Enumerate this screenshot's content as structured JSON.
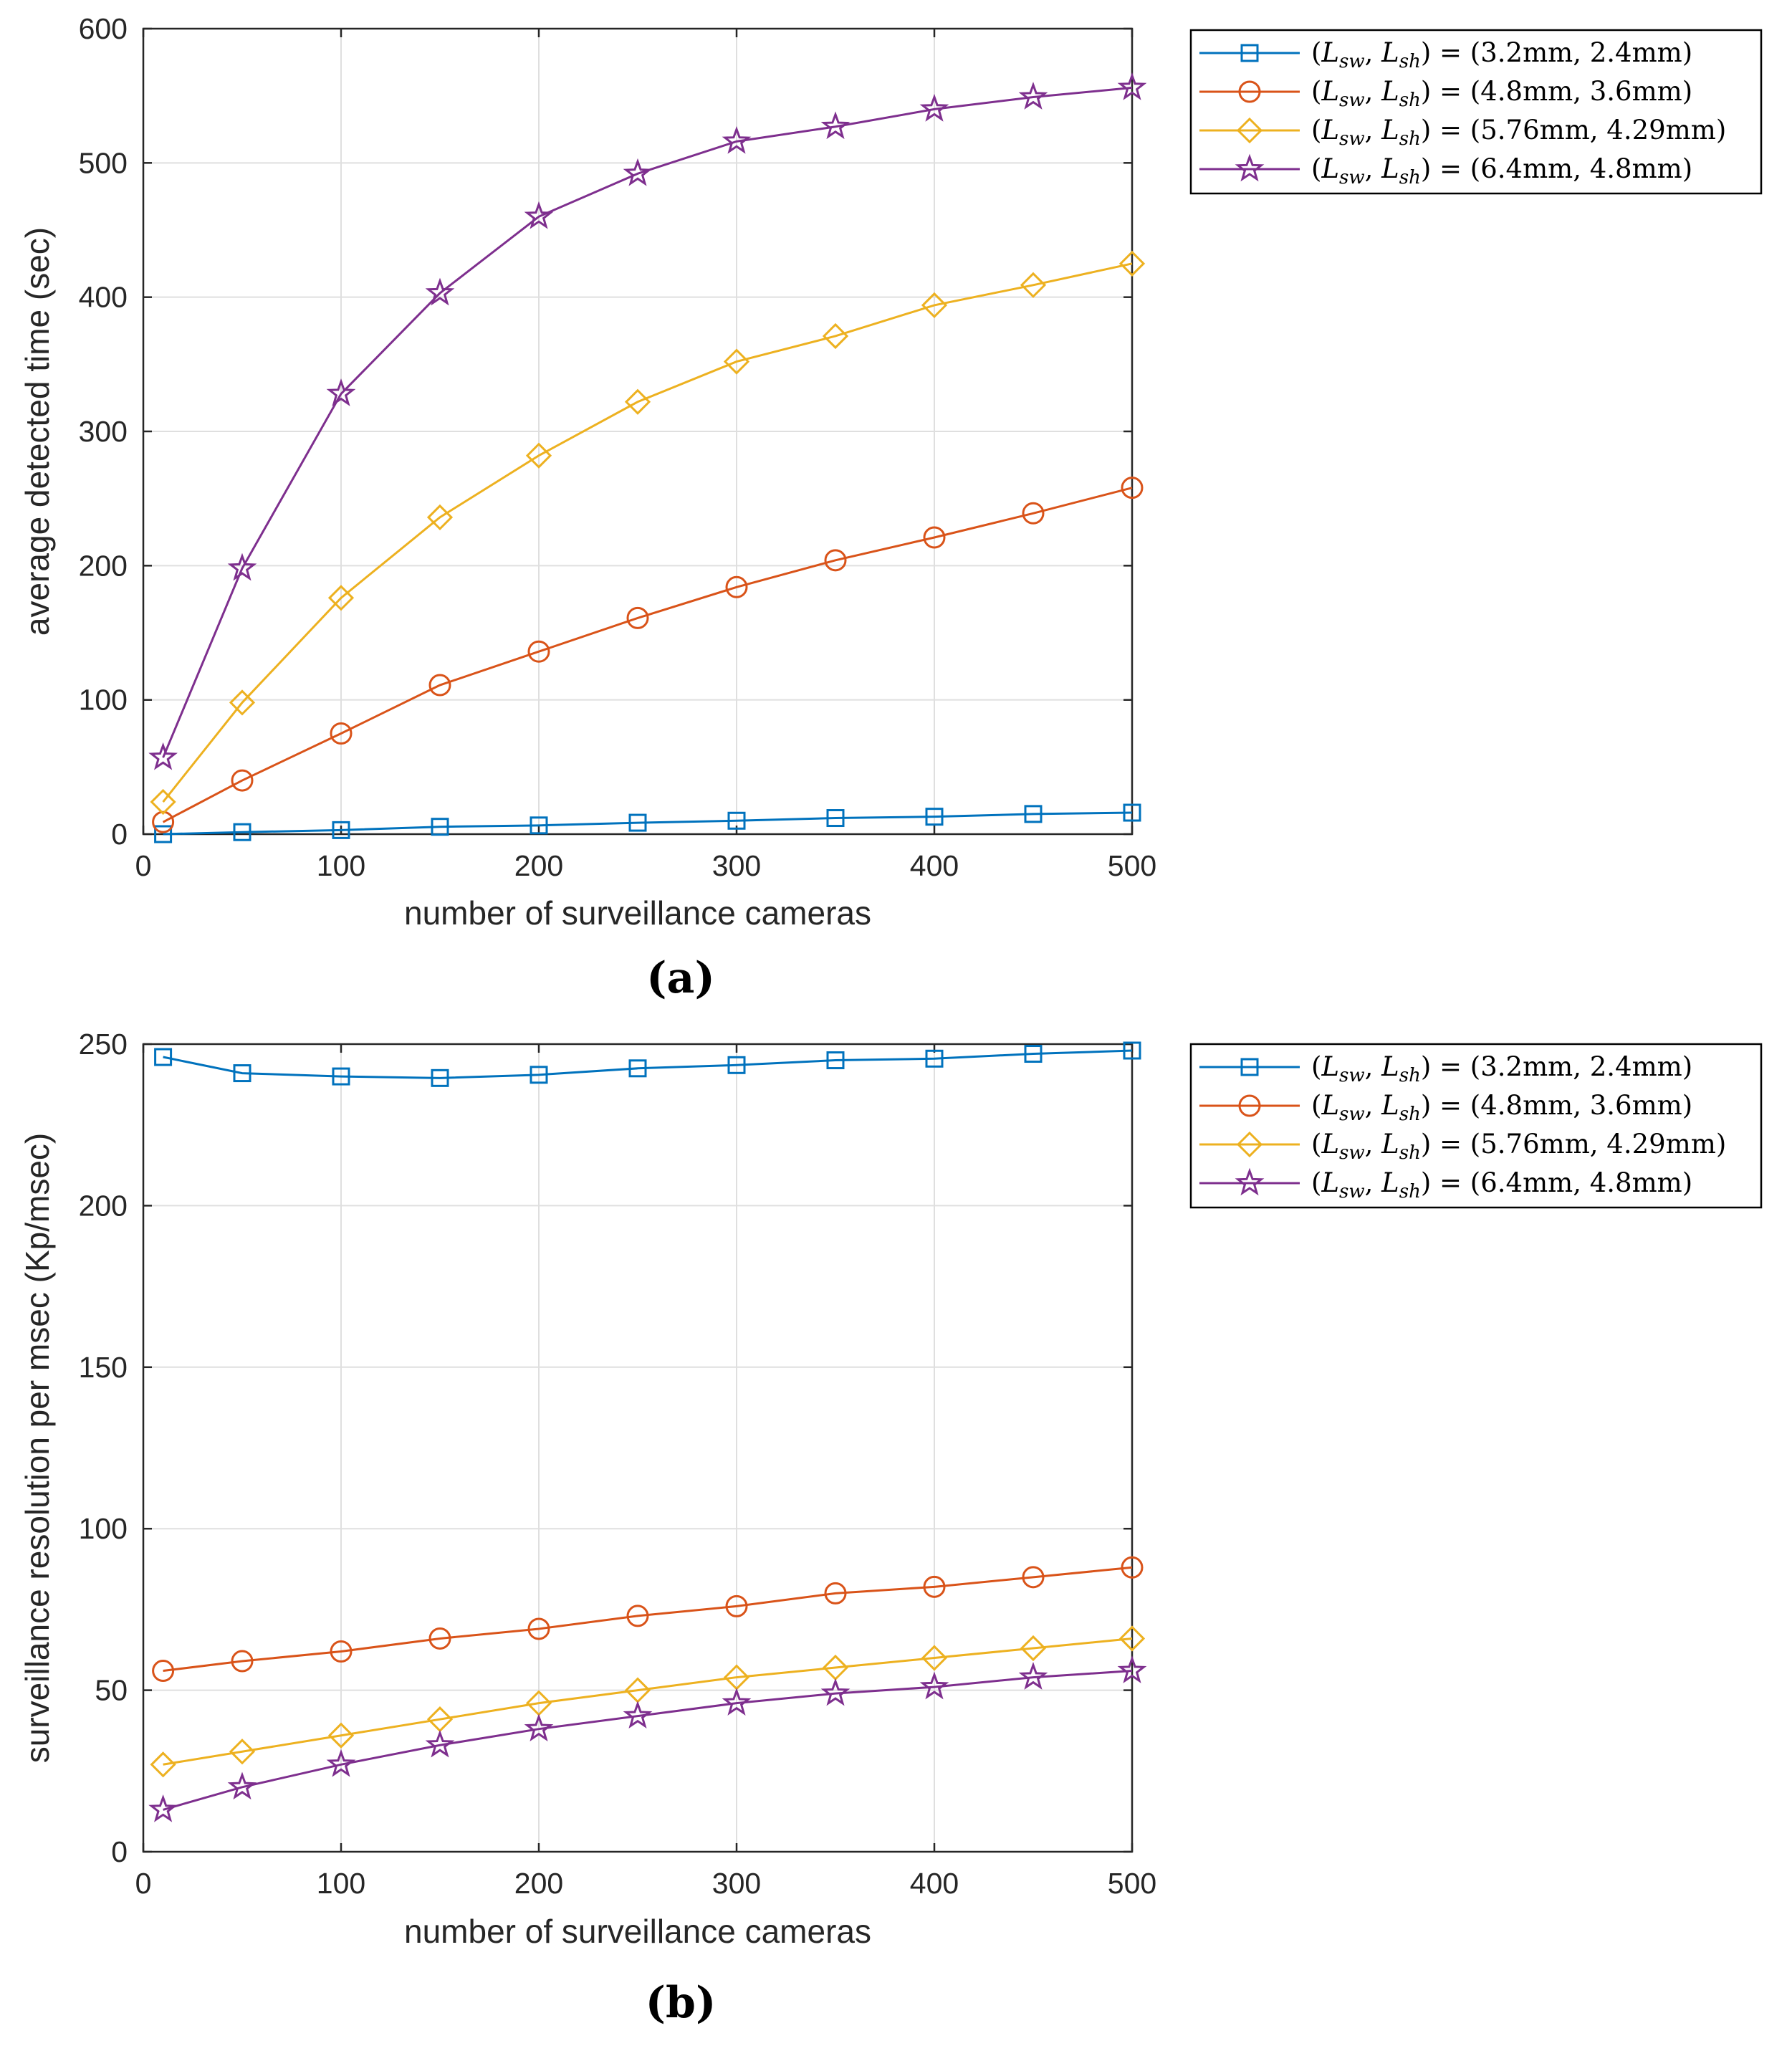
{
  "figure": {
    "colors": {
      "axis": "#262626",
      "grid": "#dfdfdf",
      "background": "#ffffff"
    }
  },
  "chart_data": [
    {
      "type": "line",
      "panel_label": "(a)",
      "title": "",
      "xlabel": "number of surveillance cameras",
      "ylabel": "average detected time (sec)",
      "xlim": [
        0,
        500
      ],
      "ylim": [
        0,
        600
      ],
      "xticks": [
        0,
        100,
        200,
        300,
        400,
        500
      ],
      "yticks": [
        0,
        100,
        200,
        300,
        400,
        500,
        600
      ],
      "grid": true,
      "legend_position": "outside-top-right",
      "x": [
        10,
        50,
        100,
        150,
        200,
        250,
        300,
        350,
        400,
        450,
        500
      ],
      "series": [
        {
          "name": "(L_sw, L_sh) = (3.2mm, 2.4mm)",
          "sym1": "L",
          "sub1": "sw",
          "sym2": "L",
          "sub2": "sh",
          "value_text": "(3.2mm, 2.4mm)",
          "color": "#0072bd",
          "marker": "square",
          "values": [
            0,
            1.5,
            3,
            5.5,
            6.5,
            8.5,
            10,
            12,
            13,
            15,
            16
          ]
        },
        {
          "name": "(L_sw, L_sh) = (4.8mm, 3.6mm)",
          "sym1": "L",
          "sub1": "sw",
          "sym2": "L",
          "sub2": "sh",
          "value_text": "(4.8mm, 3.6mm)",
          "color": "#d95319",
          "marker": "circle",
          "values": [
            9,
            40,
            75,
            111,
            136,
            161,
            184,
            204,
            221,
            239,
            258
          ]
        },
        {
          "name": "(L_sw, L_sh) = (5.76mm, 4.29mm)",
          "sym1": "L",
          "sub1": "sw",
          "sym2": "L",
          "sub2": "sh",
          "value_text": "(5.76mm, 4.29mm)",
          "color": "#edb120",
          "marker": "diamond",
          "values": [
            24,
            98,
            176,
            236,
            282,
            322,
            352,
            371,
            394,
            409,
            425
          ]
        },
        {
          "name": "(L_sw, L_sh) = (6.4mm, 4.8mm)",
          "sym1": "L",
          "sub1": "sw",
          "sym2": "L",
          "sub2": "sh",
          "value_text": "(6.4mm, 4.8mm)",
          "color": "#7e2f8e",
          "marker": "star",
          "values": [
            57,
            198,
            328,
            403,
            460,
            492,
            516,
            527,
            540,
            549,
            556
          ]
        }
      ]
    },
    {
      "type": "line",
      "panel_label": "(b)",
      "title": "",
      "xlabel": "number of surveillance cameras",
      "ylabel": "surveillance resolution per msec (Kp/msec)",
      "xlim": [
        0,
        500
      ],
      "ylim": [
        0,
        250
      ],
      "xticks": [
        0,
        100,
        200,
        300,
        400,
        500
      ],
      "yticks": [
        0,
        50,
        100,
        150,
        200,
        250
      ],
      "grid": true,
      "legend_position": "outside-top-right",
      "x": [
        10,
        50,
        100,
        150,
        200,
        250,
        300,
        350,
        400,
        450,
        500
      ],
      "series": [
        {
          "name": "(L_sw, L_sh) = (3.2mm, 2.4mm)",
          "sym1": "L",
          "sub1": "sw",
          "sym2": "L",
          "sub2": "sh",
          "value_text": "(3.2mm, 2.4mm)",
          "color": "#0072bd",
          "marker": "square",
          "values": [
            246,
            241,
            240,
            239.5,
            240.5,
            242.5,
            243.5,
            245,
            245.5,
            247,
            248
          ]
        },
        {
          "name": "(L_sw, L_sh) = (4.8mm, 3.6mm)",
          "sym1": "L",
          "sub1": "sw",
          "sym2": "L",
          "sub2": "sh",
          "value_text": "(4.8mm, 3.6mm)",
          "color": "#d95319",
          "marker": "circle",
          "values": [
            56,
            59,
            62,
            66,
            69,
            73,
            76,
            80,
            82,
            85,
            88
          ]
        },
        {
          "name": "(L_sw, L_sh) = (5.76mm, 4.29mm)",
          "sym1": "L",
          "sub1": "sw",
          "sym2": "L",
          "sub2": "sh",
          "value_text": "(5.76mm, 4.29mm)",
          "color": "#edb120",
          "marker": "diamond",
          "values": [
            27,
            31,
            36,
            41,
            46,
            50,
            54,
            57,
            60,
            63,
            66
          ]
        },
        {
          "name": "(L_sw, L_sh) = (6.4mm, 4.8mm)",
          "sym1": "L",
          "sub1": "sw",
          "sym2": "L",
          "sub2": "sh",
          "value_text": "(6.4mm, 4.8mm)",
          "color": "#7e2f8e",
          "marker": "star",
          "values": [
            13,
            20,
            27,
            33,
            38,
            42,
            46,
            49,
            51,
            54,
            56
          ]
        }
      ]
    }
  ]
}
